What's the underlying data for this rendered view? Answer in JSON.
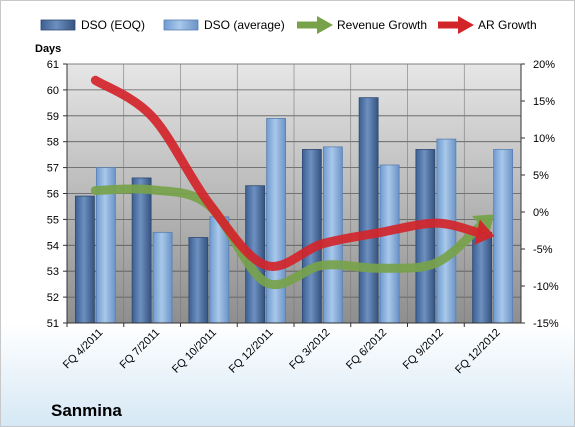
{
  "company": "Sanmina",
  "chart_data": {
    "type": "bar",
    "categories": [
      "FQ 4/2011",
      "FQ 7/2011",
      "FQ 10/2011",
      "FQ 12/2011",
      "FQ 3/2012",
      "FQ 6/2012",
      "FQ 9/2012",
      "FQ 12/2012"
    ],
    "series": [
      {
        "name": "DSO (EOQ)",
        "kind": "bar",
        "axis": "left",
        "color": "#4a6fa3",
        "values": [
          55.9,
          56.6,
          54.3,
          56.3,
          57.7,
          59.7,
          57.7,
          54.5
        ]
      },
      {
        "name": "DSO (average)",
        "kind": "bar",
        "axis": "left",
        "color": "#7fa8d6",
        "values": [
          57.0,
          54.5,
          55.1,
          58.9,
          57.8,
          57.1,
          58.1,
          57.7
        ]
      },
      {
        "name": "Revenue Growth",
        "kind": "arrow-line",
        "axis": "right",
        "unit": "%",
        "color": "#77a24a",
        "values": [
          2.9,
          3.0,
          0.9,
          -9.5,
          -7.2,
          -7.6,
          -6.9,
          -0.5
        ]
      },
      {
        "name": "AR Growth",
        "kind": "arrow-line",
        "axis": "right",
        "unit": "%",
        "color": "#d2252a",
        "values": [
          17.8,
          12.9,
          1.2,
          -7.2,
          -4.3,
          -2.8,
          -1.5,
          -3.2
        ]
      }
    ],
    "ylabel": "Days",
    "ylim": [
      51,
      61
    ],
    "yticks": [
      "51",
      "52",
      "53",
      "54",
      "55",
      "56",
      "57",
      "58",
      "59",
      "60",
      "61"
    ],
    "y2lim": [
      -15,
      20
    ],
    "y2ticks": [
      "-15%",
      "-10%",
      "-5%",
      "0%",
      "5%",
      "10%",
      "15%",
      "20%"
    ],
    "grid": true,
    "legend": "top",
    "plot_background": "gray-gradient"
  }
}
